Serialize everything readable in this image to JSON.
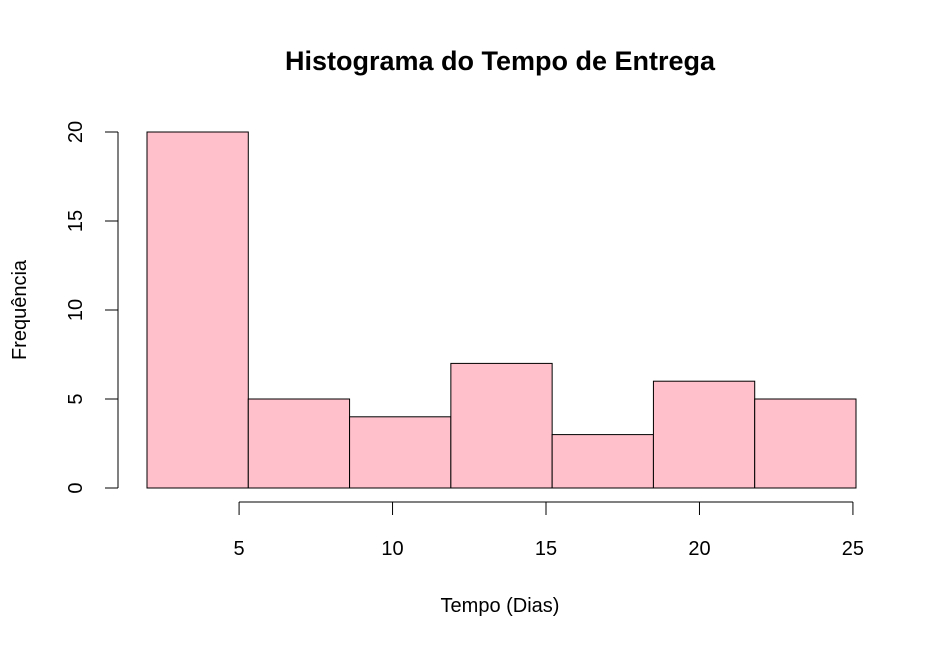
{
  "chart_data": {
    "type": "bar",
    "title": "Histograma do Tempo de Entrega",
    "xlabel": "Tempo (Dias)",
    "ylabel": "Frequência",
    "bins": [
      {
        "start": 2.0,
        "end": 5.3,
        "count": 20
      },
      {
        "start": 5.3,
        "end": 8.6,
        "count": 5
      },
      {
        "start": 8.6,
        "end": 11.9,
        "count": 4
      },
      {
        "start": 11.9,
        "end": 15.2,
        "count": 7
      },
      {
        "start": 15.2,
        "end": 18.5,
        "count": 3
      },
      {
        "start": 18.5,
        "end": 21.8,
        "count": 6
      },
      {
        "start": 21.8,
        "end": 25.1,
        "count": 5
      }
    ],
    "xlim": [
      2.0,
      25.1
    ],
    "ylim": [
      0,
      20
    ],
    "x_axis_range": [
      5,
      25
    ],
    "x_ticks": [
      5,
      10,
      15,
      20,
      25
    ],
    "y_ticks": [
      0,
      5,
      10,
      15,
      20
    ],
    "grid": false,
    "bar_color": "#ffc0cb",
    "border_color": "#000000"
  }
}
